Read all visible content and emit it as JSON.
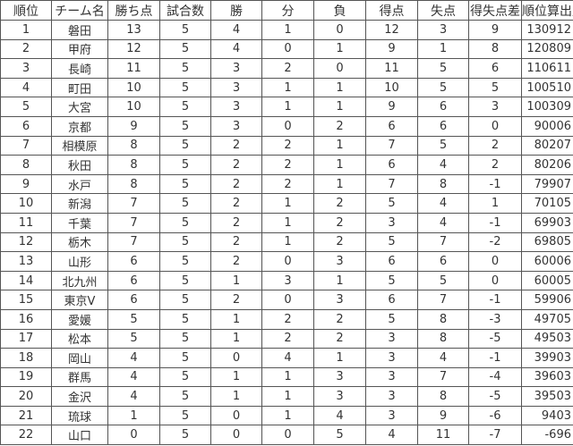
{
  "table": {
    "header": [
      "順位",
      "チーム名",
      "勝ち点",
      "試合数",
      "勝",
      "分",
      "負",
      "得点",
      "失点",
      "得失点差",
      "順位算出用"
    ],
    "rows": [
      [
        1,
        "磐田",
        13,
        5,
        4,
        1,
        0,
        12,
        3,
        9,
        130912
      ],
      [
        2,
        "甲府",
        12,
        5,
        4,
        0,
        1,
        9,
        1,
        8,
        120809
      ],
      [
        3,
        "長崎",
        11,
        5,
        3,
        2,
        0,
        11,
        5,
        6,
        110611
      ],
      [
        4,
        "町田",
        10,
        5,
        3,
        1,
        1,
        10,
        5,
        5,
        100510
      ],
      [
        5,
        "大宮",
        10,
        5,
        3,
        1,
        1,
        9,
        6,
        3,
        100309
      ],
      [
        6,
        "京都",
        9,
        5,
        3,
        0,
        2,
        6,
        6,
        0,
        90006
      ],
      [
        7,
        "相模原",
        8,
        5,
        2,
        2,
        1,
        7,
        5,
        2,
        80207
      ],
      [
        8,
        "秋田",
        8,
        5,
        2,
        2,
        1,
        6,
        4,
        2,
        80206
      ],
      [
        9,
        "水戸",
        8,
        5,
        2,
        2,
        1,
        7,
        8,
        -1,
        79907
      ],
      [
        10,
        "新潟",
        7,
        5,
        2,
        1,
        2,
        5,
        4,
        1,
        70105
      ],
      [
        11,
        "千葉",
        7,
        5,
        2,
        1,
        2,
        3,
        4,
        -1,
        69903
      ],
      [
        12,
        "栃木",
        7,
        5,
        2,
        1,
        2,
        5,
        7,
        -2,
        69805
      ],
      [
        13,
        "山形",
        6,
        5,
        2,
        0,
        3,
        6,
        6,
        0,
        60006
      ],
      [
        14,
        "北九州",
        6,
        5,
        1,
        3,
        1,
        5,
        5,
        0,
        60005
      ],
      [
        15,
        "東京V",
        6,
        5,
        2,
        0,
        3,
        6,
        7,
        -1,
        59906
      ],
      [
        16,
        "愛媛",
        5,
        5,
        1,
        2,
        2,
        5,
        8,
        -3,
        49705
      ],
      [
        17,
        "松本",
        5,
        5,
        1,
        2,
        2,
        3,
        8,
        -5,
        49503
      ],
      [
        18,
        "岡山",
        4,
        5,
        0,
        4,
        1,
        3,
        4,
        -1,
        39903
      ],
      [
        19,
        "群馬",
        4,
        5,
        1,
        1,
        3,
        3,
        7,
        -4,
        39603
      ],
      [
        20,
        "金沢",
        4,
        5,
        1,
        1,
        3,
        3,
        8,
        -5,
        39503
      ],
      [
        21,
        "琉球",
        1,
        5,
        0,
        1,
        4,
        3,
        9,
        -6,
        9403
      ],
      [
        22,
        "山口",
        0,
        5,
        0,
        0,
        5,
        4,
        11,
        -7,
        -696
      ]
    ]
  }
}
